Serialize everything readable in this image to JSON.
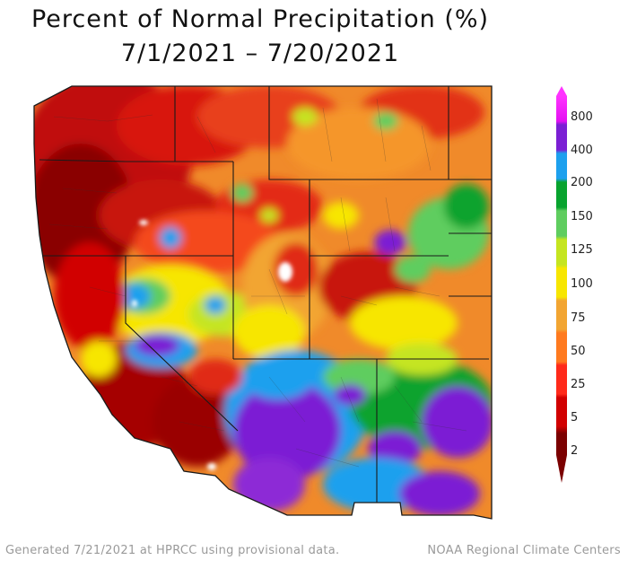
{
  "title": {
    "line1": "Percent of Normal Precipitation (%)",
    "line2": "7/1/2021 – 7/20/2021"
  },
  "legend": {
    "labels": [
      "800",
      "400",
      "200",
      "150",
      "125",
      "100",
      "75",
      "50",
      "25",
      "5",
      "2"
    ],
    "colors": [
      "#7b0000",
      "#d10000",
      "#ff2a1a",
      "#ff7a1f",
      "#f2a532",
      "#f7e600",
      "#c5e520",
      "#5fcd5f",
      "#08a32e",
      "#1da0ee",
      "#7b1fd4",
      "#e410f2",
      "#ff33ff"
    ]
  },
  "footer": {
    "left": "Generated 7/21/2021 at HPRCC using provisional data.",
    "right": "NOAA Regional Climate Centers"
  }
}
